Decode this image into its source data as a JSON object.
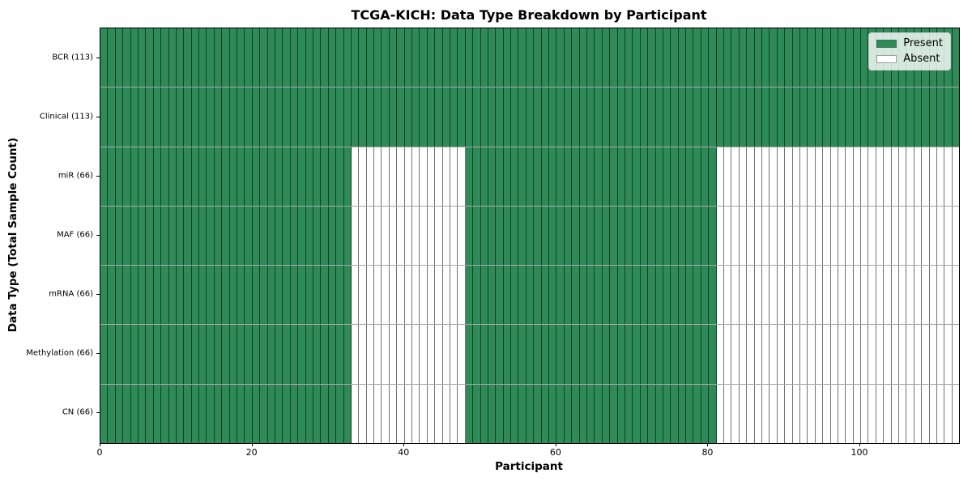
{
  "title": "TCGA-KICH: Data Type Breakdown by Participant",
  "chart_data": {
    "type": "heatmap",
    "title": "TCGA-KICH: Data Type Breakdown by Participant",
    "xlabel": "Participant",
    "ylabel": "Data Type (Total Sample Count)",
    "x_range": [
      0,
      113
    ],
    "n_participants": 113,
    "x_tick_values": [
      0,
      20,
      40,
      60,
      80,
      100
    ],
    "x_tick_labels": [
      "0",
      "20",
      "40",
      "60",
      "80",
      "100"
    ],
    "grid": false,
    "rows": [
      {
        "label": "BCR (113)",
        "data_type": "BCR",
        "total_samples": 113,
        "present_ranges": [
          [
            0,
            113
          ]
        ]
      },
      {
        "label": "Clinical (113)",
        "data_type": "Clinical",
        "total_samples": 113,
        "present_ranges": [
          [
            0,
            113
          ]
        ]
      },
      {
        "label": "miR (66)",
        "data_type": "miR",
        "total_samples": 66,
        "present_ranges": [
          [
            0,
            33
          ],
          [
            48,
            81
          ]
        ]
      },
      {
        "label": "MAF (66)",
        "data_type": "MAF",
        "total_samples": 66,
        "present_ranges": [
          [
            0,
            33
          ],
          [
            48,
            81
          ]
        ]
      },
      {
        "label": "mRNA (66)",
        "data_type": "mRNA",
        "total_samples": 66,
        "present_ranges": [
          [
            0,
            33
          ],
          [
            48,
            81
          ]
        ]
      },
      {
        "label": "Methylation (66)",
        "data_type": "Methylation",
        "total_samples": 66,
        "present_ranges": [
          [
            0,
            33
          ],
          [
            48,
            81
          ]
        ]
      },
      {
        "label": "CN (66)",
        "data_type": "CN",
        "total_samples": 66,
        "present_ranges": [
          [
            0,
            33
          ],
          [
            48,
            81
          ]
        ]
      }
    ],
    "legend": {
      "position": "upper right",
      "entries": [
        {
          "label": "Present",
          "color": "#2e8b57"
        },
        {
          "label": "Absent",
          "color": "#ffffff"
        }
      ]
    },
    "colors": {
      "present": "#2e8b57",
      "absent": "#ffffff"
    }
  }
}
